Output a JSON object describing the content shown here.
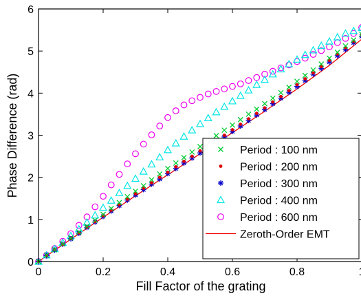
{
  "chart_data": {
    "type": "scatter",
    "xlabel": "Fill Factor of the grating",
    "ylabel": "Phase Difference (rad)",
    "xlim": [
      0,
      1
    ],
    "ylim": [
      0,
      6
    ],
    "x_ticks": [
      0,
      0.2,
      0.4,
      0.6,
      0.8,
      1
    ],
    "x_tick_labels": [
      "0",
      "0.2",
      "0.4",
      "0.6",
      "0.8",
      "1"
    ],
    "y_ticks": [
      0,
      1,
      2,
      3,
      4,
      5,
      6
    ],
    "y_tick_labels": [
      "0",
      "1",
      "2",
      "3",
      "4",
      "5",
      "6"
    ],
    "grid": false,
    "legend_position": "bottom-right",
    "x": [
      0,
      0.025,
      0.05,
      0.075,
      0.1,
      0.125,
      0.15,
      0.175,
      0.2,
      0.225,
      0.25,
      0.275,
      0.3,
      0.325,
      0.35,
      0.375,
      0.4,
      0.425,
      0.45,
      0.475,
      0.5,
      0.525,
      0.55,
      0.575,
      0.6,
      0.625,
      0.65,
      0.675,
      0.7,
      0.725,
      0.75,
      0.775,
      0.8,
      0.825,
      0.85,
      0.875,
      0.9,
      0.925,
      0.95,
      0.975,
      1
    ],
    "series": [
      {
        "name": "Period : 100 nm",
        "marker": "x",
        "color": "#00cc33",
        "values": [
          0.0,
          0.15,
          0.28,
          0.42,
          0.56,
          0.7,
          0.84,
          0.98,
          1.12,
          1.26,
          1.4,
          1.54,
          1.67,
          1.8,
          1.94,
          2.08,
          2.21,
          2.34,
          2.47,
          2.6,
          2.73,
          2.86,
          2.99,
          3.12,
          3.24,
          3.37,
          3.5,
          3.62,
          3.75,
          3.88,
          4.01,
          4.14,
          4.28,
          4.42,
          4.55,
          4.69,
          4.83,
          4.97,
          5.12,
          5.26,
          5.4
        ]
      },
      {
        "name": "Period : 200 nm",
        "marker": "dot",
        "color": "#dd0000",
        "values": [
          0.0,
          0.14,
          0.28,
          0.41,
          0.55,
          0.68,
          0.82,
          0.95,
          1.09,
          1.22,
          1.35,
          1.48,
          1.61,
          1.74,
          1.87,
          2.0,
          2.12,
          2.25,
          2.38,
          2.5,
          2.63,
          2.75,
          2.88,
          3.0,
          3.13,
          3.26,
          3.39,
          3.52,
          3.65,
          3.79,
          3.92,
          4.06,
          4.2,
          4.34,
          4.48,
          4.63,
          4.78,
          4.93,
          5.08,
          5.23,
          5.38
        ]
      },
      {
        "name": "Period : 300 nm",
        "marker": "star",
        "color": "#0000cc",
        "values": [
          0.0,
          0.14,
          0.27,
          0.41,
          0.54,
          0.67,
          0.81,
          0.94,
          1.07,
          1.2,
          1.33,
          1.46,
          1.58,
          1.71,
          1.84,
          1.96,
          2.09,
          2.21,
          2.34,
          2.46,
          2.58,
          2.71,
          2.84,
          2.96,
          3.09,
          3.22,
          3.35,
          3.48,
          3.61,
          3.75,
          3.88,
          4.02,
          4.16,
          4.3,
          4.45,
          4.59,
          4.74,
          4.89,
          5.04,
          5.2,
          5.35
        ]
      },
      {
        "name": "Period : 400 nm",
        "marker": "triangle",
        "color": "#00e5e5",
        "values": [
          0.0,
          0.15,
          0.3,
          0.45,
          0.61,
          0.77,
          0.93,
          1.1,
          1.28,
          1.45,
          1.63,
          1.8,
          1.97,
          2.14,
          2.31,
          2.48,
          2.65,
          2.81,
          2.97,
          3.12,
          3.27,
          3.41,
          3.55,
          3.68,
          3.81,
          3.94,
          4.07,
          4.2,
          4.32,
          4.45,
          4.57,
          4.69,
          4.8,
          4.91,
          5.02,
          5.13,
          5.23,
          5.33,
          5.42,
          5.48,
          5.55
        ]
      },
      {
        "name": "Period : 600 nm",
        "marker": "circle",
        "color": "#ee00ee",
        "values": [
          0.0,
          0.15,
          0.31,
          0.48,
          0.66,
          0.86,
          1.06,
          1.3,
          1.55,
          1.82,
          2.07,
          2.32,
          2.56,
          2.79,
          3.01,
          3.22,
          3.42,
          3.58,
          3.72,
          3.82,
          3.9,
          3.98,
          4.04,
          4.1,
          4.16,
          4.22,
          4.3,
          4.37,
          4.45,
          4.52,
          4.6,
          4.67,
          4.75,
          4.83,
          4.92,
          5.01,
          5.1,
          5.2,
          5.3,
          5.42,
          5.56
        ]
      }
    ],
    "lines": [
      {
        "name": "Zeroth-Order EMT",
        "color": "#ee0000",
        "x": [
          0,
          0.1,
          0.2,
          0.3,
          0.4,
          0.5,
          0.6,
          0.7,
          0.8,
          0.9,
          1
        ],
        "y": [
          0.0,
          0.53,
          1.05,
          1.56,
          2.06,
          2.56,
          3.06,
          3.57,
          4.1,
          4.66,
          5.28
        ]
      }
    ]
  }
}
